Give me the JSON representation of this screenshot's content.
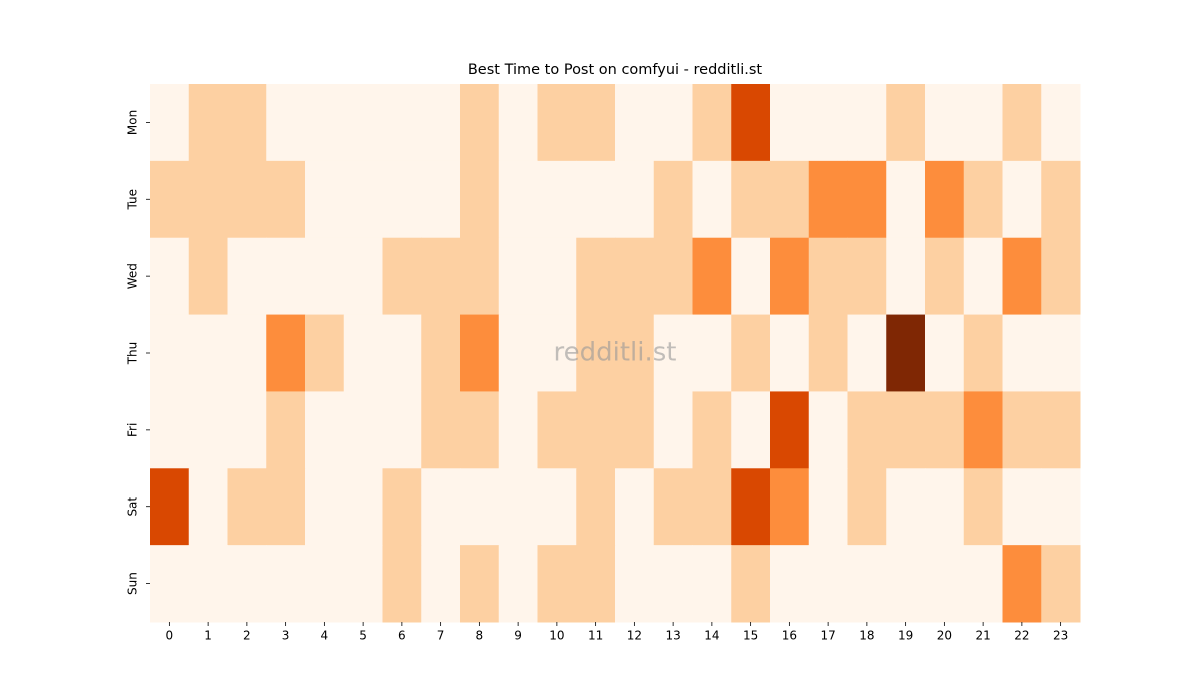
{
  "chart_data": {
    "type": "heatmap",
    "title": "Best Time to Post on comfyui - redditli.st",
    "watermark": "redditli.st",
    "x": [
      0,
      1,
      2,
      3,
      4,
      5,
      6,
      7,
      8,
      9,
      10,
      11,
      12,
      13,
      14,
      15,
      16,
      17,
      18,
      19,
      20,
      21,
      22,
      23
    ],
    "y": [
      "Mon",
      "Tue",
      "Wed",
      "Thu",
      "Fri",
      "Sat",
      "Sun"
    ],
    "values": [
      [
        0,
        1,
        1,
        0,
        0,
        0,
        0,
        0,
        1,
        0,
        1,
        1,
        0,
        0,
        1,
        3,
        0,
        0,
        0,
        1,
        0,
        0,
        1,
        0
      ],
      [
        1,
        1,
        1,
        1,
        0,
        0,
        0,
        0,
        1,
        0,
        0,
        0,
        0,
        1,
        0,
        1,
        1,
        2,
        2,
        0,
        2,
        1,
        0,
        1
      ],
      [
        0,
        1,
        0,
        0,
        0,
        0,
        1,
        1,
        1,
        0,
        0,
        1,
        1,
        1,
        2,
        0,
        2,
        1,
        1,
        0,
        1,
        0,
        2,
        1
      ],
      [
        0,
        0,
        0,
        2,
        1,
        0,
        0,
        1,
        2,
        0,
        0,
        1,
        1,
        0,
        0,
        1,
        0,
        1,
        0,
        4,
        0,
        1,
        0,
        0
      ],
      [
        0,
        0,
        0,
        1,
        0,
        0,
        0,
        1,
        1,
        0,
        1,
        1,
        1,
        0,
        1,
        0,
        3,
        0,
        1,
        1,
        1,
        2,
        1,
        1
      ],
      [
        3,
        0,
        1,
        1,
        0,
        0,
        1,
        0,
        0,
        0,
        0,
        1,
        0,
        1,
        1,
        3,
        2,
        0,
        1,
        0,
        0,
        1,
        0,
        0
      ],
      [
        0,
        0,
        0,
        0,
        0,
        0,
        1,
        0,
        1,
        0,
        1,
        1,
        0,
        0,
        0,
        1,
        0,
        0,
        0,
        0,
        0,
        0,
        2,
        1
      ]
    ],
    "zlim": [
      0,
      4
    ],
    "colormap": [
      "#fff5eb",
      "#fdd0a2",
      "#fd8d3c",
      "#d94801",
      "#7f2704"
    ]
  }
}
